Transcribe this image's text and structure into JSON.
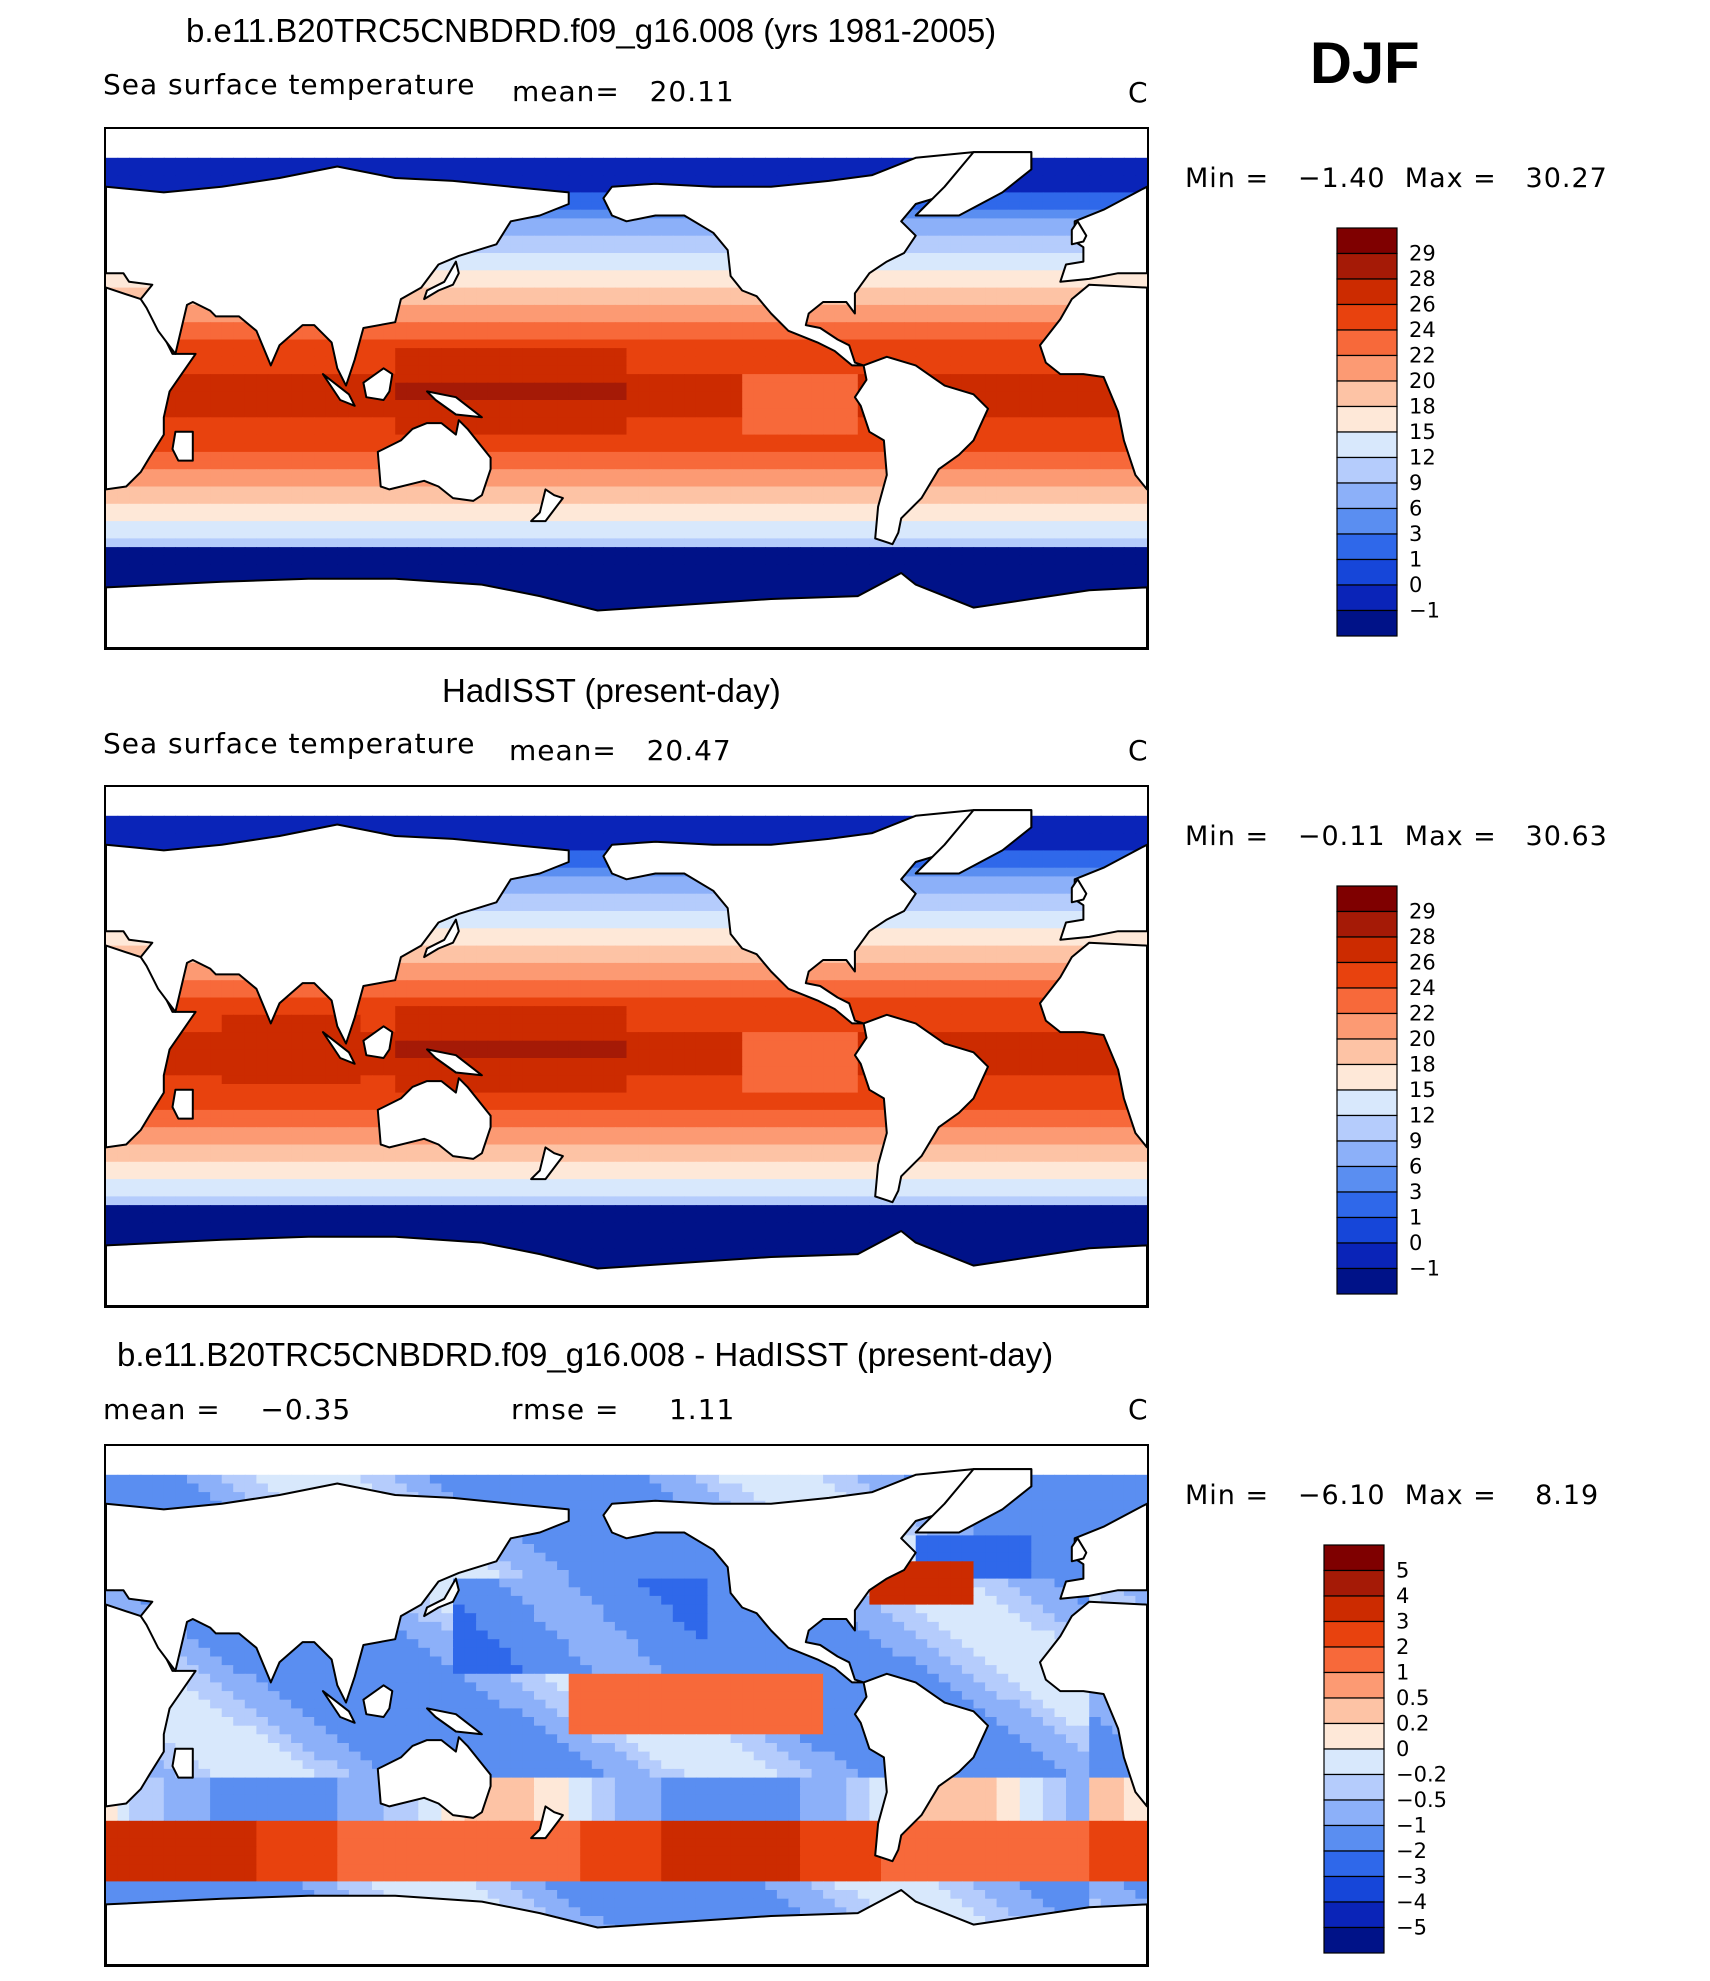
{
  "djf_label": "DJF",
  "panels": [
    {
      "title": "b.e11.B20TRC5CNBDRD.f09_g16.008 (yrs 1981-2005)",
      "left_label": "Sea surface temperature",
      "stat1": "mean=   20.11",
      "stat2": "",
      "units": "C",
      "minmax": "Min =   −1.40  Max =   30.27",
      "field": "model",
      "levels": [
        "29",
        "28",
        "26",
        "24",
        "22",
        "20",
        "18",
        "15",
        "12",
        "9",
        "6",
        "3",
        "1",
        "0",
        "−1"
      ],
      "colors": [
        "#7f0000",
        "#a51a06",
        "#cc2b00",
        "#e8420e",
        "#f7693a",
        "#fc9a73",
        "#fdc3a5",
        "#fee8d8",
        "#d8e8fc",
        "#b5ccfc",
        "#8cb0f9",
        "#5a8ef1",
        "#2f68ea",
        "#1646d9",
        "#0a24b8",
        "#001288"
      ]
    },
    {
      "title": "HadISST (present-day)",
      "left_label": "Sea surface temperature",
      "stat1": "mean=   20.47",
      "stat2": "",
      "units": "C",
      "minmax": "Min =   −0.11  Max =   30.63",
      "field": "obs",
      "levels": [
        "29",
        "28",
        "26",
        "24",
        "22",
        "20",
        "18",
        "15",
        "12",
        "9",
        "6",
        "3",
        "1",
        "0",
        "−1"
      ],
      "colors": [
        "#7f0000",
        "#a51a06",
        "#cc2b00",
        "#e8420e",
        "#f7693a",
        "#fc9a73",
        "#fdc3a5",
        "#fee8d8",
        "#d8e8fc",
        "#b5ccfc",
        "#8cb0f9",
        "#5a8ef1",
        "#2f68ea",
        "#1646d9",
        "#0a24b8",
        "#001288"
      ]
    },
    {
      "title": "b.e11.B20TRC5CNBDRD.f09_g16.008 - HadISST (present-day)",
      "left_label": "mean =    −0.35",
      "stat1": "rmse =     1.11",
      "stat2": "",
      "units": "C",
      "minmax": "Min =   −6.10  Max =    8.19",
      "field": "diff",
      "levels": [
        "5",
        "4",
        "3",
        "2",
        "1",
        "0.5",
        "0.2",
        "0",
        "−0.2",
        "−0.5",
        "−1",
        "−2",
        "−3",
        "−4",
        "−5"
      ],
      "colors": [
        "#7f0000",
        "#a51a06",
        "#cc2b00",
        "#e8420e",
        "#f7693a",
        "#fc9a73",
        "#fdc3a5",
        "#fee8d8",
        "#d8e8fc",
        "#b5ccfc",
        "#8cb0f9",
        "#5a8ef1",
        "#2f68ea",
        "#1646d9",
        "#0a24b8",
        "#001288"
      ]
    }
  ]
}
